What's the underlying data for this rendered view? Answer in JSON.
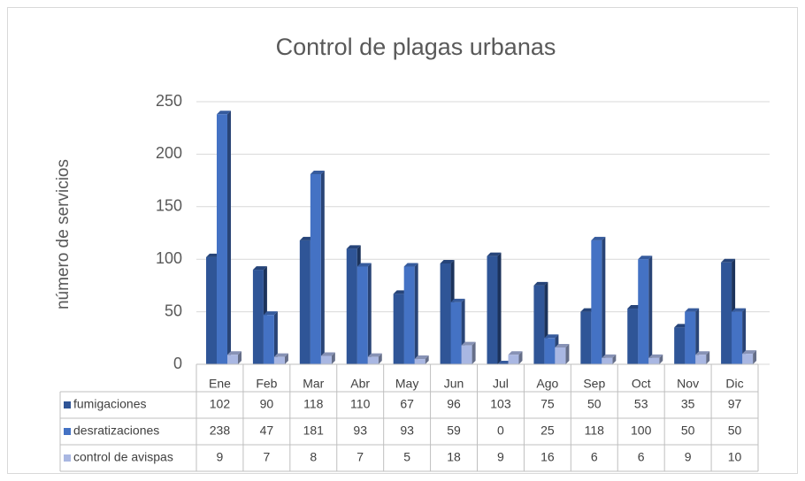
{
  "chart_data": {
    "type": "bar",
    "title": "Control de plagas urbanas",
    "y_label": "número de servicios",
    "categories": [
      "Ene",
      "Feb",
      "Mar",
      "Abr",
      "May",
      "Jun",
      "Jul",
      "Ago",
      "Sep",
      "Oct",
      "Nov",
      "Dic"
    ],
    "series": [
      {
        "name": "fumigaciones",
        "color": "#2f5597",
        "values": [
          102,
          90,
          118,
          110,
          67,
          96,
          103,
          75,
          50,
          53,
          35,
          97
        ]
      },
      {
        "name": "desratizaciones",
        "color": "#4472c4",
        "values": [
          238,
          47,
          181,
          93,
          93,
          59,
          0,
          25,
          118,
          100,
          50,
          50
        ]
      },
      {
        "name": "control de avispas",
        "color": "#a9b7e2",
        "values": [
          9,
          7,
          8,
          7,
          5,
          18,
          9,
          16,
          6,
          6,
          9,
          10
        ]
      }
    ],
    "ylim": [
      0,
      250
    ],
    "yticks": [
      0,
      50,
      100,
      150,
      200,
      250
    ],
    "grid": true,
    "data_table": true
  }
}
